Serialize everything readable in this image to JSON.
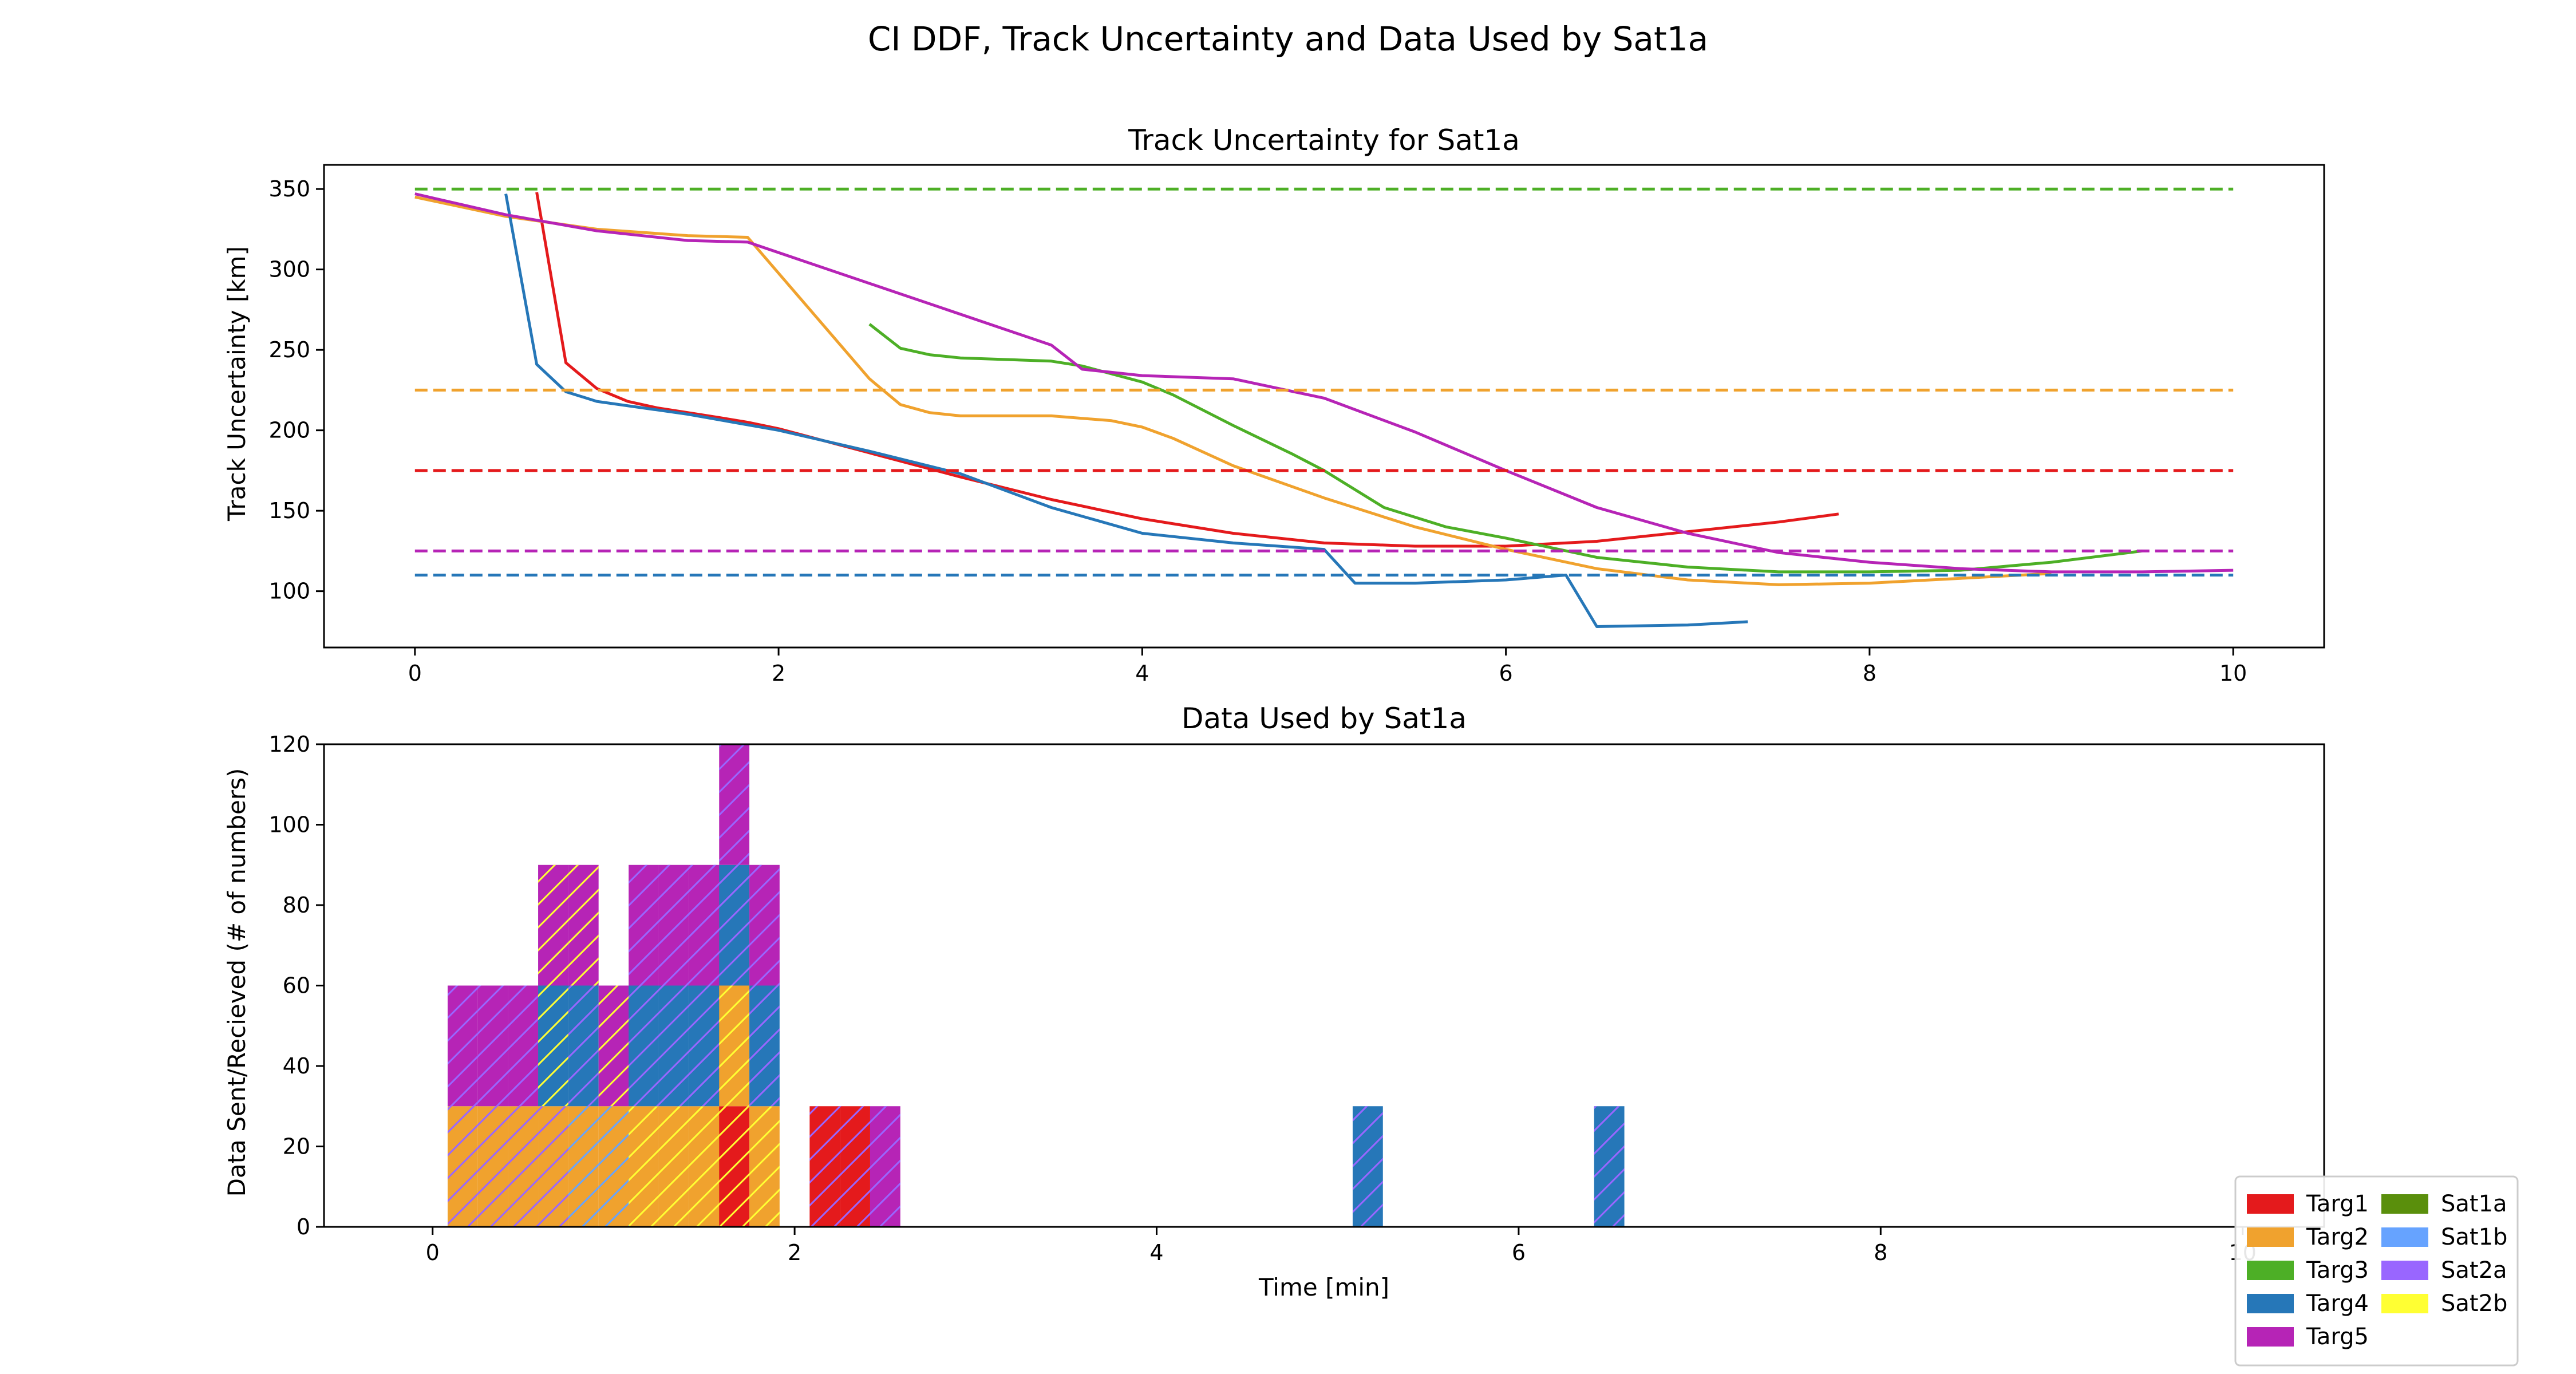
{
  "figure": {
    "suptitle": "CI DDF, Track Uncertainty and Data Used by Sat1a"
  },
  "colors": {
    "Targ1": "#e41a1c",
    "Targ2": "#f0a22e",
    "Targ3": "#4daf26",
    "Targ4": "#2677b8",
    "Targ5": "#b624b6",
    "Sat1a": "#5a8f0c",
    "Sat1b": "#66a3ff",
    "Sat2a": "#9966ff",
    "Sat2b": "#ffff33"
  },
  "legend": {
    "col1": [
      "Targ1",
      "Targ2",
      "Targ3",
      "Targ4",
      "Targ5"
    ],
    "col2": [
      "Sat1a",
      "Sat1b",
      "Sat2a",
      "Sat2b"
    ]
  },
  "chart_data": [
    {
      "type": "line",
      "title": "Track Uncertainty for Sat1a",
      "xlabel": "",
      "ylabel": "Track Uncertainty [km]",
      "xlim": [
        -0.5,
        10.5
      ],
      "ylim": [
        65,
        365
      ],
      "xticks": [
        0,
        2,
        4,
        6,
        8,
        10
      ],
      "yticks": [
        100,
        150,
        200,
        250,
        300,
        350
      ],
      "series": [
        {
          "target": "Targ1",
          "style": "solid",
          "x": [
            0.67,
            0.83,
            1.0,
            1.17,
            1.33,
            1.5,
            1.67,
            1.83,
            2.0,
            2.5,
            3.0,
            3.5,
            4.0,
            4.5,
            5.0,
            5.5,
            6.0,
            6.5,
            7.0,
            7.5,
            7.83
          ],
          "y": [
            348,
            242,
            226,
            218,
            214,
            211,
            208,
            205,
            201,
            186,
            171,
            157,
            145,
            136,
            130,
            128,
            128,
            131,
            137,
            143,
            148
          ]
        },
        {
          "target": "Targ2",
          "style": "solid",
          "x": [
            0,
            0.5,
            1.0,
            1.5,
            1.83,
            2.5,
            2.67,
            2.83,
            3.0,
            3.5,
            3.83,
            4.0,
            4.17,
            4.5,
            5.0,
            5.5,
            6.0,
            6.5,
            7.0,
            7.5,
            8.0,
            8.5,
            9.0
          ],
          "y": [
            345,
            333,
            325,
            321,
            320,
            232,
            216,
            211,
            209,
            209,
            206,
            202,
            195,
            178,
            158,
            140,
            126,
            114,
            107,
            104,
            105,
            108,
            111
          ]
        },
        {
          "target": "Targ3",
          "style": "solid",
          "x": [
            2.5,
            2.67,
            2.83,
            3.0,
            3.5,
            3.67,
            4.0,
            4.17,
            4.5,
            4.83,
            5.0,
            5.33,
            5.67,
            6.0,
            6.5,
            7.0,
            7.5,
            8.0,
            8.5,
            9.0,
            9.5
          ],
          "y": [
            266,
            251,
            247,
            245,
            243,
            240,
            230,
            222,
            203,
            185,
            175,
            152,
            140,
            133,
            121,
            115,
            112,
            112,
            113,
            118,
            125
          ]
        },
        {
          "target": "Targ4",
          "style": "solid",
          "x": [
            0.5,
            0.67,
            0.83,
            1.0,
            1.5,
            2.0,
            2.5,
            3.0,
            3.5,
            4.0,
            4.5,
            5.0,
            5.17,
            5.5,
            6.0,
            6.33,
            6.5,
            7.0,
            7.33
          ],
          "y": [
            347,
            241,
            224,
            218,
            210,
            200,
            187,
            173,
            152,
            136,
            130,
            126,
            105,
            105,
            107,
            110,
            78,
            79,
            81
          ]
        },
        {
          "target": "Targ5",
          "style": "solid",
          "x": [
            0,
            0.5,
            1.0,
            1.5,
            1.83,
            3.5,
            3.67,
            4.0,
            4.5,
            5.0,
            5.5,
            6.0,
            6.5,
            7.0,
            7.5,
            8.0,
            8.5,
            9.0,
            9.5,
            10.0
          ],
          "y": [
            347,
            334,
            324,
            318,
            317,
            253,
            238,
            234,
            232,
            220,
            199,
            175,
            152,
            136,
            124,
            118,
            114,
            112,
            112,
            113
          ]
        },
        {
          "target": "Targ3",
          "style": "dashed",
          "x": [
            0,
            10
          ],
          "y": [
            350,
            350
          ]
        },
        {
          "target": "Targ2",
          "style": "dashed",
          "x": [
            0,
            10
          ],
          "y": [
            225,
            225
          ]
        },
        {
          "target": "Targ1",
          "style": "dashed",
          "x": [
            0,
            10
          ],
          "y": [
            175,
            175
          ]
        },
        {
          "target": "Targ5",
          "style": "dashed",
          "x": [
            0,
            10
          ],
          "y": [
            125,
            125
          ]
        },
        {
          "target": "Targ4",
          "style": "dashed",
          "x": [
            0,
            10
          ],
          "y": [
            110,
            110
          ]
        }
      ]
    },
    {
      "type": "bar",
      "title": "Data Used by Sat1a",
      "xlabel": "Time [min]",
      "ylabel": "Data Sent/Recieved (# of numbers)",
      "xlim": [
        -0.6,
        10.45
      ],
      "ylim": [
        0,
        120
      ],
      "xticks": [
        0,
        2,
        4,
        6,
        8,
        10
      ],
      "yticks": [
        0,
        20,
        40,
        60,
        80,
        100,
        120
      ],
      "bar_width": 0.167,
      "bars": [
        {
          "x": 0.083,
          "base": 0,
          "value": 30,
          "target": "Targ2",
          "hatch": "Sat2a"
        },
        {
          "x": 0.25,
          "base": 0,
          "value": 30,
          "target": "Targ2",
          "hatch": "Sat2a"
        },
        {
          "x": 0.417,
          "base": 0,
          "value": 30,
          "target": "Targ2",
          "hatch": "Sat2a"
        },
        {
          "x": 0.583,
          "base": 0,
          "value": 30,
          "target": "Targ2",
          "hatch": "Sat2a"
        },
        {
          "x": 0.75,
          "base": 0,
          "value": 30,
          "target": "Targ2",
          "hatch": "Sat1b"
        },
        {
          "x": 0.917,
          "base": 0,
          "value": 30,
          "target": "Targ2",
          "hatch": "Sat1b"
        },
        {
          "x": 1.083,
          "base": 0,
          "value": 30,
          "target": "Targ2",
          "hatch": "Sat2b"
        },
        {
          "x": 1.25,
          "base": 0,
          "value": 30,
          "target": "Targ2",
          "hatch": "Sat2b"
        },
        {
          "x": 1.417,
          "base": 0,
          "value": 30,
          "target": "Targ2",
          "hatch": "Sat2b"
        },
        {
          "x": 1.583,
          "base": 0,
          "value": 30,
          "target": "Targ1",
          "hatch": "Sat2b"
        },
        {
          "x": 1.75,
          "base": 0,
          "value": 30,
          "target": "Targ2",
          "hatch": "Sat2b"
        },
        {
          "x": 2.083,
          "base": 0,
          "value": 30,
          "target": "Targ1",
          "hatch": "Sat2a"
        },
        {
          "x": 2.25,
          "base": 0,
          "value": 30,
          "target": "Targ1",
          "hatch": "Sat2a"
        },
        {
          "x": 2.417,
          "base": 0,
          "value": 30,
          "target": "Targ5",
          "hatch": "Sat2a"
        },
        {
          "x": 5.083,
          "base": 0,
          "value": 30,
          "target": "Targ4",
          "hatch": "Sat2a"
        },
        {
          "x": 6.417,
          "base": 0,
          "value": 30,
          "target": "Targ4",
          "hatch": "Sat2a"
        },
        {
          "x": 0.083,
          "base": 30,
          "value": 30,
          "target": "Targ5",
          "hatch": "Sat2a"
        },
        {
          "x": 0.25,
          "base": 30,
          "value": 30,
          "target": "Targ5",
          "hatch": "Sat2a"
        },
        {
          "x": 0.417,
          "base": 30,
          "value": 30,
          "target": "Targ5",
          "hatch": "Sat2a"
        },
        {
          "x": 0.583,
          "base": 30,
          "value": 30,
          "target": "Targ4",
          "hatch": "Sat2b"
        },
        {
          "x": 0.75,
          "base": 30,
          "value": 30,
          "target": "Targ4",
          "hatch": "Sat2a"
        },
        {
          "x": 0.917,
          "base": 30,
          "value": 30,
          "target": "Targ5",
          "hatch": "Sat2b"
        },
        {
          "x": 1.083,
          "base": 30,
          "value": 30,
          "target": "Targ4",
          "hatch": "Sat2a"
        },
        {
          "x": 1.25,
          "base": 30,
          "value": 30,
          "target": "Targ4",
          "hatch": "Sat2a"
        },
        {
          "x": 1.417,
          "base": 30,
          "value": 30,
          "target": "Targ4",
          "hatch": "Sat2a"
        },
        {
          "x": 1.583,
          "base": 30,
          "value": 30,
          "target": "Targ2",
          "hatch": "Sat2b"
        },
        {
          "x": 1.75,
          "base": 30,
          "value": 30,
          "target": "Targ4",
          "hatch": "Sat2a"
        },
        {
          "x": 0.583,
          "base": 60,
          "value": 30,
          "target": "Targ5",
          "hatch": "Sat2b"
        },
        {
          "x": 0.75,
          "base": 60,
          "value": 30,
          "target": "Targ5",
          "hatch": "Sat2b"
        },
        {
          "x": 1.083,
          "base": 60,
          "value": 30,
          "target": "Targ5",
          "hatch": "Sat2a"
        },
        {
          "x": 1.25,
          "base": 60,
          "value": 30,
          "target": "Targ5",
          "hatch": "Sat2a"
        },
        {
          "x": 1.417,
          "base": 60,
          "value": 30,
          "target": "Targ5",
          "hatch": "Sat2a"
        },
        {
          "x": 1.583,
          "base": 60,
          "value": 30,
          "target": "Targ4",
          "hatch": "Sat2a"
        },
        {
          "x": 1.75,
          "base": 60,
          "value": 30,
          "target": "Targ5",
          "hatch": "Sat2a"
        },
        {
          "x": 1.583,
          "base": 90,
          "value": 30,
          "target": "Targ5",
          "hatch": "Sat2a"
        }
      ]
    }
  ]
}
